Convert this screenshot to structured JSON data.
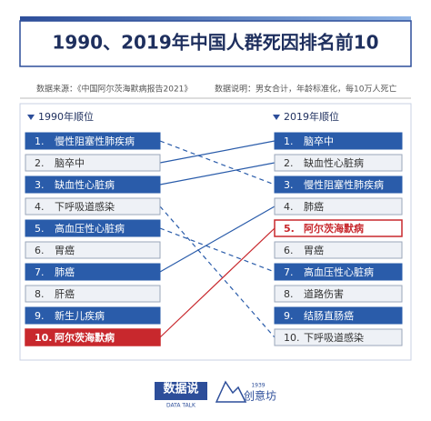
{
  "header": {
    "title": "1990、2019年中国人群死因排名前10",
    "source": "数据来源：《中国阿尔茨海默病报告2021》",
    "note": "数据说明：男女合计，年龄标准化，每10万人死亡"
  },
  "left": {
    "heading": "1990年顺位",
    "items": [
      {
        "rank": "1.",
        "name": "慢性阻塞性肺疾病"
      },
      {
        "rank": "2.",
        "name": "脑卒中"
      },
      {
        "rank": "3.",
        "name": "缺血性心脏病"
      },
      {
        "rank": "4.",
        "name": "下呼吸道感染"
      },
      {
        "rank": "5.",
        "name": "高血压性心脏病"
      },
      {
        "rank": "6.",
        "name": "胃癌"
      },
      {
        "rank": "7.",
        "name": "肺癌"
      },
      {
        "rank": "8.",
        "name": "肝癌"
      },
      {
        "rank": "9.",
        "name": "新生儿疾病"
      },
      {
        "rank": "10.",
        "name": "阿尔茨海默病",
        "highlight": true
      }
    ]
  },
  "right": {
    "heading": "2019年顺位",
    "items": [
      {
        "rank": "1.",
        "name": "脑卒中"
      },
      {
        "rank": "2.",
        "name": "缺血性心脏病"
      },
      {
        "rank": "3.",
        "name": "慢性阻塞性肺疾病"
      },
      {
        "rank": "4.",
        "name": "肺癌"
      },
      {
        "rank": "5.",
        "name": "阿尔茨海默病",
        "highlight": true
      },
      {
        "rank": "6.",
        "name": "胃癌"
      },
      {
        "rank": "7.",
        "name": "高血压性心脏病"
      },
      {
        "rank": "8.",
        "name": "道路伤害"
      },
      {
        "rank": "9.",
        "name": "结肠直肠癌"
      },
      {
        "rank": "10.",
        "name": "下呼吸道感染"
      }
    ]
  },
  "footer": {
    "logo1": "数据说",
    "logo1_sub": "DATA TALK",
    "logo2_year": "1939",
    "logo2": "创意坊"
  }
}
